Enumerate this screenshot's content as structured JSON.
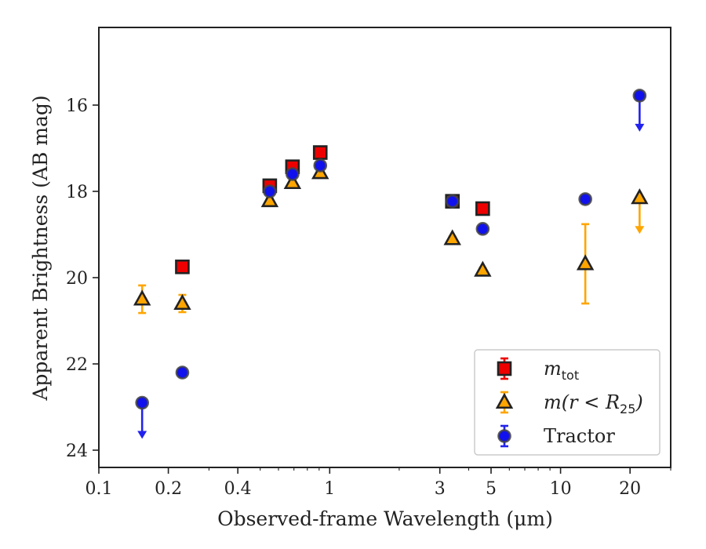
{
  "chart_data": {
    "type": "scatter",
    "xscale": "log",
    "xlim": [
      0.1,
      30
    ],
    "ylim": [
      24.4,
      14.2
    ],
    "y_inverted": true,
    "xlabel": "Observed-frame Wavelength (μm)",
    "ylabel": "Apparent Brightness (AB mag)",
    "x_ticks": [
      0.1,
      0.2,
      0.4,
      1,
      3,
      5,
      10,
      20
    ],
    "x_tick_labels": [
      "0.1",
      "0.2",
      "0.4",
      "1",
      "3",
      "5",
      "10",
      "20"
    ],
    "y_ticks": [
      16,
      18,
      20,
      22,
      24
    ],
    "y_tick_labels": [
      "16",
      "18",
      "20",
      "22",
      "24"
    ],
    "legend": {
      "position": "lower-right",
      "entries": [
        {
          "label": "m",
          "sub": "tot"
        },
        {
          "label": "m(r < R",
          "sub": "25",
          "suffix": ")"
        },
        {
          "label": "Tractor",
          "sub": ""
        }
      ]
    },
    "series": [
      {
        "name": "m_tot",
        "marker": "square",
        "face_color": "#ee0000",
        "edge_color": "#222222",
        "err_color": "#ee0000",
        "points": [
          {
            "x": 0.23,
            "y": 19.75,
            "err": 0.08,
            "upper_limit": false
          },
          {
            "x": 0.55,
            "y": 17.87,
            "err": 0.05,
            "upper_limit": false
          },
          {
            "x": 0.69,
            "y": 17.43,
            "err": 0.05,
            "upper_limit": false
          },
          {
            "x": 0.91,
            "y": 17.1,
            "err": 0.05,
            "upper_limit": false
          },
          {
            "x": 3.4,
            "y": 18.23,
            "err": 0.05,
            "upper_limit": false
          },
          {
            "x": 4.6,
            "y": 18.4,
            "err": 0.05,
            "upper_limit": false
          }
        ]
      },
      {
        "name": "m(r<R25)",
        "marker": "triangle",
        "face_color": "#ffa500",
        "edge_color": "#222222",
        "err_color": "#ffa500",
        "points": [
          {
            "x": 0.154,
            "y": 20.5,
            "err": 0.32,
            "upper_limit": false
          },
          {
            "x": 0.23,
            "y": 20.6,
            "err": 0.2,
            "upper_limit": false
          },
          {
            "x": 0.55,
            "y": 18.22,
            "err": 0.05,
            "upper_limit": false
          },
          {
            "x": 0.69,
            "y": 17.8,
            "err": 0.05,
            "upper_limit": false
          },
          {
            "x": 0.91,
            "y": 17.57,
            "err": 0.05,
            "upper_limit": false
          },
          {
            "x": 3.4,
            "y": 19.1,
            "err": 0.05,
            "upper_limit": false
          },
          {
            "x": 4.6,
            "y": 19.83,
            "err": 0.05,
            "upper_limit": false
          },
          {
            "x": 12.8,
            "y": 19.68,
            "err": 0.92,
            "upper_limit": false
          },
          {
            "x": 22.0,
            "y": 18.15,
            "err": 0,
            "upper_limit": true
          }
        ]
      },
      {
        "name": "Tractor",
        "marker": "circle",
        "face_color": "#1111ee",
        "edge_color": "#444444",
        "err_color": "#2222ee",
        "points": [
          {
            "x": 0.154,
            "y": 22.9,
            "err": 0,
            "upper_limit": true
          },
          {
            "x": 0.23,
            "y": 22.2,
            "err": 0.08,
            "upper_limit": false
          },
          {
            "x": 0.55,
            "y": 18.0,
            "err": 0.05,
            "upper_limit": false
          },
          {
            "x": 0.69,
            "y": 17.6,
            "err": 0.05,
            "upper_limit": false
          },
          {
            "x": 0.91,
            "y": 17.4,
            "err": 0.05,
            "upper_limit": false
          },
          {
            "x": 3.4,
            "y": 18.23,
            "err": 0.05,
            "upper_limit": false
          },
          {
            "x": 4.6,
            "y": 18.87,
            "err": 0.05,
            "upper_limit": false
          },
          {
            "x": 12.8,
            "y": 18.18,
            "err": 0.05,
            "upper_limit": false
          },
          {
            "x": 22.0,
            "y": 15.78,
            "err": 0,
            "upper_limit": true
          }
        ]
      }
    ]
  }
}
